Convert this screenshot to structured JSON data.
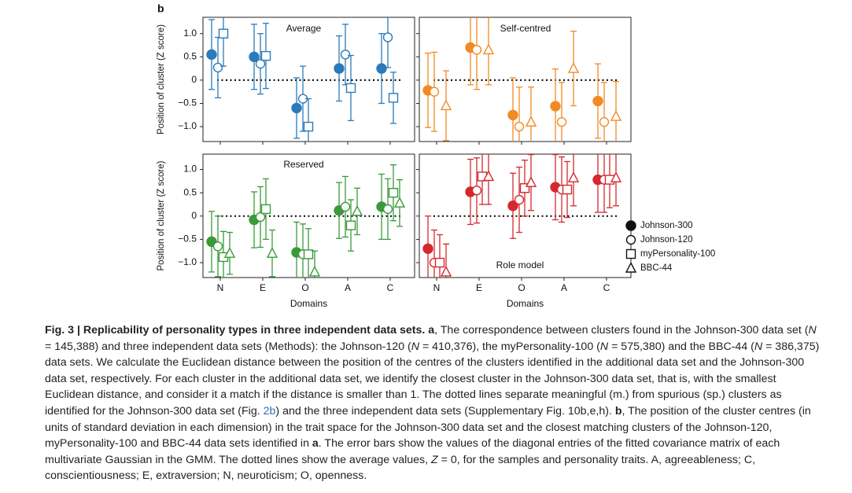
{
  "panel_label": "b",
  "legend": {
    "entries": [
      {
        "name": "Johnson-300",
        "marker": "filled-circle"
      },
      {
        "name": "Johnson-120",
        "marker": "open-circle"
      },
      {
        "name": "myPersonality-100",
        "marker": "open-square"
      },
      {
        "name": "BBC-44",
        "marker": "open-triangle"
      }
    ]
  },
  "chart_data": [
    {
      "type": "errorbar",
      "title": "Average",
      "ylabel": "Position of cluster (Z score)",
      "categories": [
        null,
        null,
        null,
        null,
        null
      ],
      "ylim": [
        -1.32,
        1.35
      ],
      "yticks": [
        {
          "value": -1,
          "label": "−1.0"
        },
        {
          "value": -0.5,
          "label": "−0.5"
        },
        0,
        0.5,
        {
          "value": 1,
          "label": "1.0"
        }
      ],
      "hline": 0,
      "color": "#2b7bba",
      "series": [
        {
          "marker": "filled-circle",
          "color": "#2b7bba",
          "values": [
            0.55,
            0.5,
            -0.6,
            0.25,
            0.25
          ],
          "errors": [
            0.75,
            0.7,
            0.65,
            0.7,
            0.75
          ]
        },
        {
          "marker": "open-circle",
          "color": "#2b7bba",
          "values": [
            0.27,
            0.35,
            -0.4,
            0.55,
            0.92
          ],
          "errors": [
            0.65,
            0.65,
            0.7,
            0.65,
            0.65
          ]
        },
        {
          "marker": "open-square",
          "color": "#2b7bba",
          "values": [
            1.0,
            0.52,
            -1.0,
            -0.17,
            -0.38
          ],
          "errors": [
            0.7,
            0.7,
            0.6,
            0.7,
            0.55
          ]
        }
      ]
    },
    {
      "type": "errorbar",
      "title": "Self-centred",
      "categories": [
        null,
        null,
        null,
        null,
        null
      ],
      "ylim": [
        -1.32,
        1.35
      ],
      "yticks": [
        -1,
        -0.5,
        0,
        0.5,
        1
      ],
      "hline": 0,
      "color": "#f28a24",
      "series": [
        {
          "marker": "filled-circle",
          "color": "#f28a24",
          "values": [
            -0.22,
            0.7,
            -0.75,
            -0.56,
            -0.45
          ],
          "errors": [
            0.8,
            0.8,
            0.8,
            0.8,
            0.8
          ]
        },
        {
          "marker": "open-circle",
          "color": "#f28a24",
          "values": [
            -0.25,
            0.65,
            -1.0,
            -0.9,
            -0.9
          ],
          "errors": [
            0.85,
            0.85,
            0.85,
            0.85,
            0.85
          ]
        },
        {
          "marker": "open-triangle",
          "color": "#f28a24",
          "values": [
            -0.55,
            0.65,
            -0.9,
            0.25,
            -0.78
          ],
          "errors": [
            0.75,
            0.75,
            0.75,
            0.8,
            0.75
          ]
        }
      ]
    },
    {
      "type": "errorbar",
      "title": "Reserved",
      "ylabel": "Position of cluster (Z score)",
      "xlabel": "Domains",
      "categories": [
        "N",
        "E",
        "O",
        "A",
        "C"
      ],
      "ylim": [
        -1.32,
        1.33
      ],
      "yticks": [
        {
          "value": -1,
          "label": "−1.0"
        },
        {
          "value": -0.5,
          "label": "−0.5"
        },
        0,
        0.5,
        {
          "value": 1,
          "label": "1.0"
        }
      ],
      "hline": 0,
      "color": "#3a9a3a",
      "series": [
        {
          "marker": "filled-circle",
          "color": "#3a9a3a",
          "values": [
            -0.55,
            -0.08,
            -0.78,
            0.12,
            0.2
          ],
          "errors": [
            0.65,
            0.6,
            0.65,
            0.6,
            0.7
          ]
        },
        {
          "marker": "open-circle",
          "color": "#3a9a3a",
          "values": [
            -0.65,
            -0.02,
            -0.82,
            0.2,
            0.15
          ],
          "errors": [
            0.65,
            0.65,
            0.65,
            0.65,
            0.65
          ]
        },
        {
          "marker": "open-square",
          "color": "#3a9a3a",
          "values": [
            -0.88,
            0.15,
            -0.82,
            -0.2,
            0.5
          ],
          "errors": [
            0.55,
            0.65,
            0.55,
            0.55,
            0.6
          ]
        },
        {
          "marker": "open-triangle",
          "color": "#3a9a3a",
          "values": [
            -0.8,
            -0.8,
            -1.2,
            0.1,
            0.28
          ],
          "errors": [
            0.45,
            0.5,
            0.45,
            0.5,
            0.5
          ]
        }
      ]
    },
    {
      "type": "errorbar",
      "title": "Role model",
      "xlabel": "Domains",
      "categories": [
        "N",
        "E",
        "O",
        "A",
        "C"
      ],
      "ylim": [
        -1.32,
        1.33
      ],
      "yticks": [
        -1,
        -0.5,
        0,
        0.5,
        1
      ],
      "hline": 0,
      "color": "#d4282e",
      "series": [
        {
          "marker": "filled-circle",
          "color": "#d4282e",
          "values": [
            -0.7,
            0.52,
            0.22,
            0.62,
            0.78
          ],
          "errors": [
            0.7,
            0.7,
            0.7,
            0.7,
            0.7
          ]
        },
        {
          "marker": "open-circle",
          "color": "#d4282e",
          "values": [
            -1.0,
            0.55,
            0.35,
            0.57,
            0.78
          ],
          "errors": [
            0.7,
            0.7,
            0.7,
            0.7,
            0.7
          ]
        },
        {
          "marker": "open-square",
          "color": "#d4282e",
          "values": [
            -1.0,
            0.85,
            0.6,
            0.57,
            0.78
          ],
          "errors": [
            0.6,
            0.6,
            0.6,
            0.6,
            0.6
          ]
        },
        {
          "marker": "open-triangle",
          "color": "#d4282e",
          "values": [
            -1.2,
            0.85,
            0.72,
            0.82,
            0.82
          ],
          "errors": [
            0.6,
            0.6,
            0.6,
            0.6,
            0.6
          ]
        }
      ]
    }
  ],
  "caption": [
    {
      "text": "Fig. 3 | Replicability of personality types in three independent data sets. a",
      "style": "bold"
    },
    {
      "text": ", The correspondence between clusters found in the Johnson-300 data set (",
      "style": "normal"
    },
    {
      "text": "N",
      "style": "italic"
    },
    {
      "text": " = 145,388) and three independent data sets (Methods): the Johnson-120 (",
      "style": "normal"
    },
    {
      "text": "N",
      "style": "italic"
    },
    {
      "text": " = 410,376), the myPersonality-100 (",
      "style": "normal"
    },
    {
      "text": "N",
      "style": "italic"
    },
    {
      "text": " = 575,380) and the BBC-44 (",
      "style": "normal"
    },
    {
      "text": "N",
      "style": "italic"
    },
    {
      "text": " = 386,375) data sets. We calculate the Euclidean distance between the position of the centres of the clusters identified in the additional data set and the Johnson-300 data set, respectively. For each cluster in the additional data set, we identify the closest cluster in the Johnson-300 data set, that is, with the smallest Euclidean distance, and consider it a match if the distance is smaller than 1. The dotted lines separate meaningful (m.) from spurious (sp.) clusters as identified for the Johnson-300 data set (Fig. ",
      "style": "normal"
    },
    {
      "text": "2b",
      "style": "link"
    },
    {
      "text": ") and the three independent data sets (Supplementary Fig. 10b,e,h). ",
      "style": "normal"
    },
    {
      "text": "b",
      "style": "bold"
    },
    {
      "text": ", The position of the cluster centres (in units of standard deviation in each dimension) in the trait space for the Johnson-300 data set and the closest matching clusters of the Johnson-120, myPersonality-100 and BBC-44 data sets identified in ",
      "style": "normal"
    },
    {
      "text": "a",
      "style": "bold"
    },
    {
      "text": ". The error bars show the values of the diagonal entries of the fitted covariance matrix of each multivariate Gaussian in the GMM. The dotted lines show the average values, ",
      "style": "normal"
    },
    {
      "text": "Z",
      "style": "italic"
    },
    {
      "text": " = 0, for the samples and personality traits. A, agreeableness; C, conscientiousness; E, extraversion; N, neuroticism; O, openness.",
      "style": "normal"
    }
  ]
}
